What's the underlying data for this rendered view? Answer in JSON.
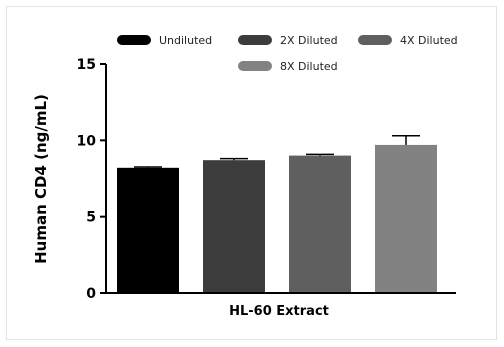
{
  "chart_data": {
    "type": "bar",
    "title": "",
    "xlabel": "",
    "ylabel": "Human CD4 (ng/mL)",
    "categories": [
      "HL-60 Extract"
    ],
    "ylim": [
      0,
      15
    ],
    "yticks": [
      0,
      5,
      10,
      15
    ],
    "grid": false,
    "legend_position": "top",
    "series": [
      {
        "name": "Undiluted",
        "values": [
          8.2
        ],
        "error": [
          0.05
        ],
        "color": "#000000"
      },
      {
        "name": "2X Diluted",
        "values": [
          8.7
        ],
        "error": [
          0.1
        ],
        "color": "#3c3c3c"
      },
      {
        "name": "4X Diluted",
        "values": [
          9.0
        ],
        "error": [
          0.08
        ],
        "color": "#5f5f5f"
      },
      {
        "name": "8X Diluted",
        "values": [
          9.7
        ],
        "error": [
          0.6
        ],
        "color": "#828282"
      }
    ]
  }
}
